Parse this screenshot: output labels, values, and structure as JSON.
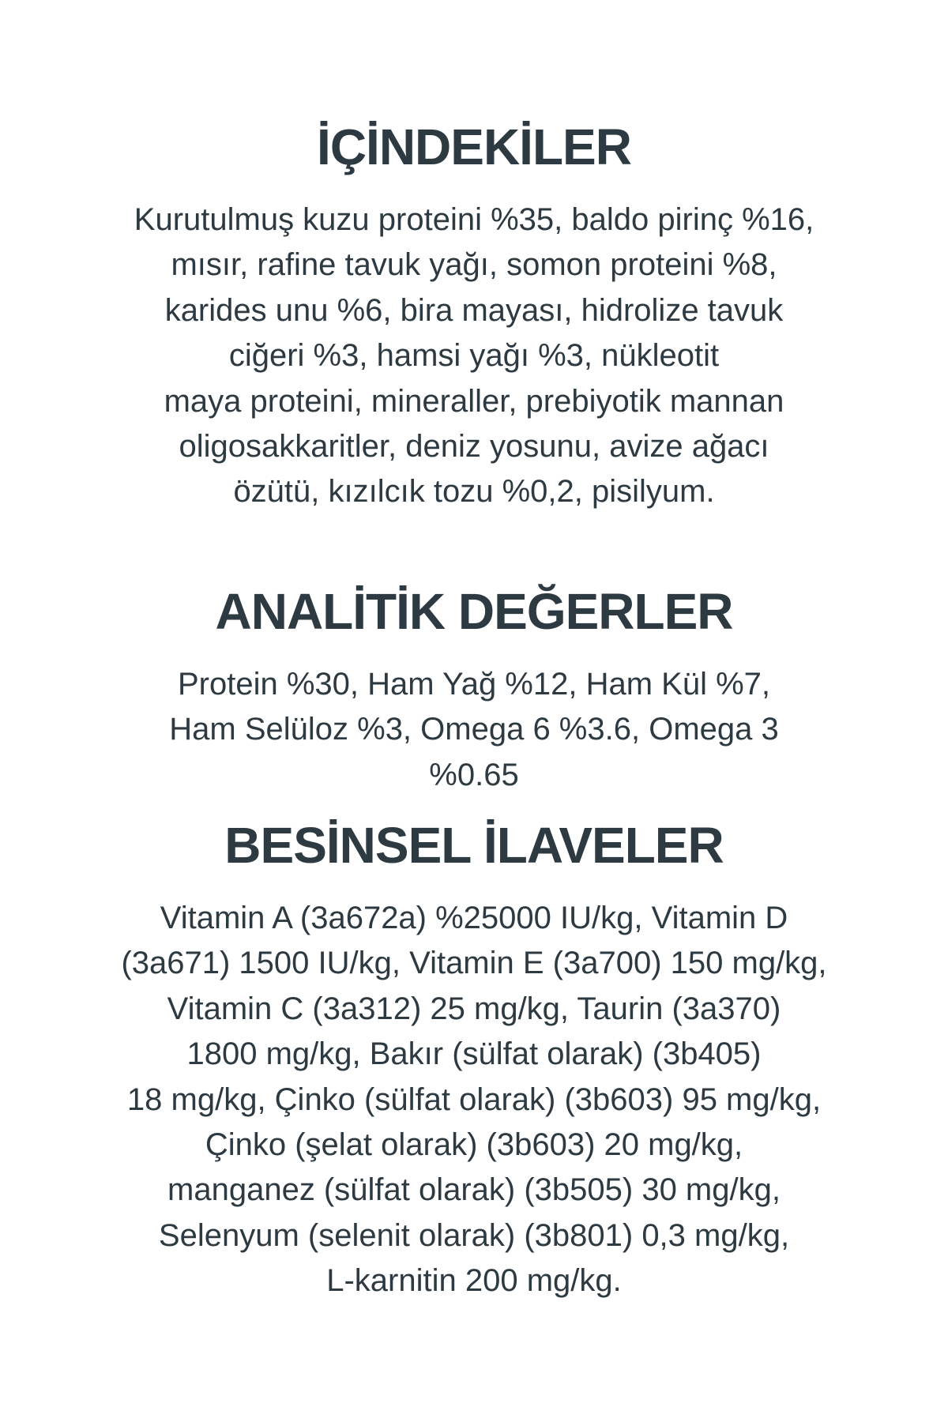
{
  "sections": [
    {
      "title": "İÇİNDEKİLER",
      "lines": [
        "Kurutulmuş kuzu proteini %35, baldo pirinç %16,",
        "mısır, rafine tavuk yağı, somon proteini %8,",
        "karides unu %6, bira mayası, hidrolize tavuk",
        "ciğeri %3, hamsi yağı %3, nükleotit",
        "maya proteini, mineraller, prebiyotik mannan",
        "oligosakkaritler, deniz yosunu, avize ağacı",
        "özütü, kızılcık tozu %0,2, pisilyum."
      ]
    },
    {
      "title": "ANALİTİK DEĞERLER",
      "lines": [
        "Protein %30, Ham Yağ %12, Ham Kül %7,",
        "Ham Selüloz %3, Omega 6 %3.6, Omega 3",
        "%0.65"
      ]
    },
    {
      "title": "BESİNSEL İLAVELER",
      "lines": [
        "Vitamin A (3a672a) %25000 IU/kg, Vitamin D",
        "(3a671) 1500 IU/kg, Vitamin E (3a700) 150 mg/kg,",
        "Vitamin C (3a312) 25 mg/kg, Taurin (3a370)",
        "1800 mg/kg, Bakır (sülfat olarak) (3b405)",
        "18 mg/kg, Çinko (sülfat olarak) (3b603) 95 mg/kg,",
        "Çinko (şelat olarak) (3b603) 20 mg/kg,",
        "manganez (sülfat olarak) (3b505) 30 mg/kg,",
        "Selenyum (selenit olarak) (3b801) 0,3 mg/kg,",
        "L-karnitin 200 mg/kg."
      ]
    }
  ],
  "colors": {
    "text": "#2e3a42",
    "background": "#ffffff"
  }
}
